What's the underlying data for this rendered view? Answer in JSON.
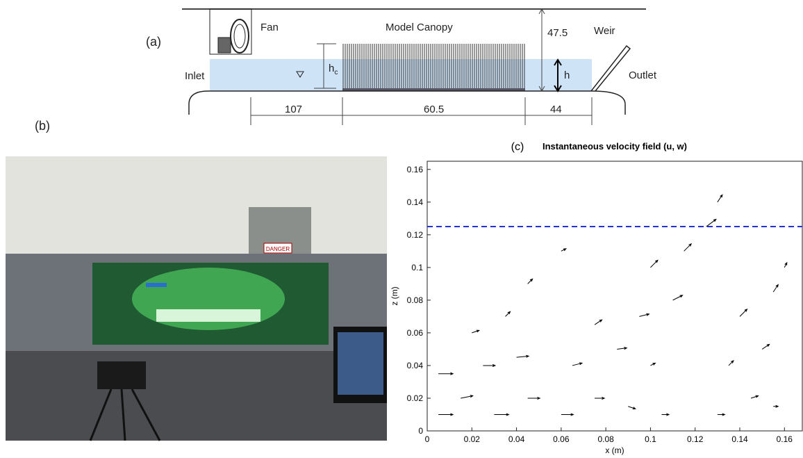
{
  "figure_a": {
    "panel_label": "(a)",
    "fan": "Fan",
    "canopy": "Model Canopy",
    "depth": "47.5",
    "weir": "Weir",
    "inlet": "Inlet",
    "canopy_height": "h",
    "canopy_height_sub": "c",
    "water_depth": "h",
    "outlet": "Outlet",
    "length_upstream": "107",
    "length_canopy": "60.5",
    "length_downstream": "44"
  },
  "figure_b": {
    "panel_label": "(b)",
    "sign": "DANGER"
  },
  "chart_data": {
    "type": "quiver",
    "panel_label": "(c)",
    "title": "Instantaneous velocity field (u, w)",
    "x_label": "x (m)",
    "y_label": "z (m)",
    "xlim": [
      0,
      0.168
    ],
    "ylim": [
      0,
      0.165
    ],
    "xticks": [
      0,
      0.02,
      0.04,
      0.06,
      0.08,
      0.1,
      0.12,
      0.14,
      0.16
    ],
    "yticks": [
      0,
      0.02,
      0.04,
      0.06,
      0.08,
      0.1,
      0.12,
      0.14,
      0.16
    ],
    "color": "#000000",
    "x": [
      0.005,
      0.015,
      0.03,
      0.045,
      0.005,
      0.025,
      0.04,
      0.02,
      0.035,
      0.045,
      0.06,
      0.06,
      0.075,
      0.09,
      0.105,
      0.065,
      0.085,
      0.1,
      0.075,
      0.095,
      0.11,
      0.1,
      0.115,
      0.125,
      0.13,
      0.13,
      0.145,
      0.155,
      0.135,
      0.15,
      0.14,
      0.155,
      0.16
    ],
    "y": [
      0.01,
      0.02,
      0.01,
      0.02,
      0.035,
      0.04,
      0.045,
      0.06,
      0.07,
      0.09,
      0.11,
      0.01,
      0.02,
      0.015,
      0.01,
      0.04,
      0.05,
      0.04,
      0.065,
      0.07,
      0.08,
      0.1,
      0.11,
      0.125,
      0.14,
      0.01,
      0.02,
      0.015,
      0.04,
      0.05,
      0.07,
      0.085,
      0.1
    ],
    "u": [
      0.06,
      0.05,
      0.06,
      0.05,
      0.06,
      0.05,
      0.05,
      0.03,
      0.02,
      0.02,
      0.02,
      0.05,
      0.04,
      0.03,
      0.03,
      0.04,
      0.04,
      0.02,
      0.03,
      0.04,
      0.04,
      0.03,
      0.03,
      0.04,
      0.02,
      0.03,
      0.03,
      0.02,
      0.02,
      0.03,
      0.03,
      0.02,
      0.01
    ],
    "v": [
      0,
      0.01,
      0,
      0,
      0,
      0,
      0.005,
      0.01,
      0.02,
      0.02,
      0.01,
      0,
      0,
      -0.01,
      0,
      0.01,
      0.005,
      0.01,
      0.02,
      0.01,
      0.02,
      0.03,
      0.03,
      0.03,
      0.03,
      0,
      0.01,
      0,
      0.02,
      0.02,
      0.03,
      0.03,
      0.02
    ],
    "hline": {
      "value": 0.125,
      "color": "#2233dd"
    }
  }
}
